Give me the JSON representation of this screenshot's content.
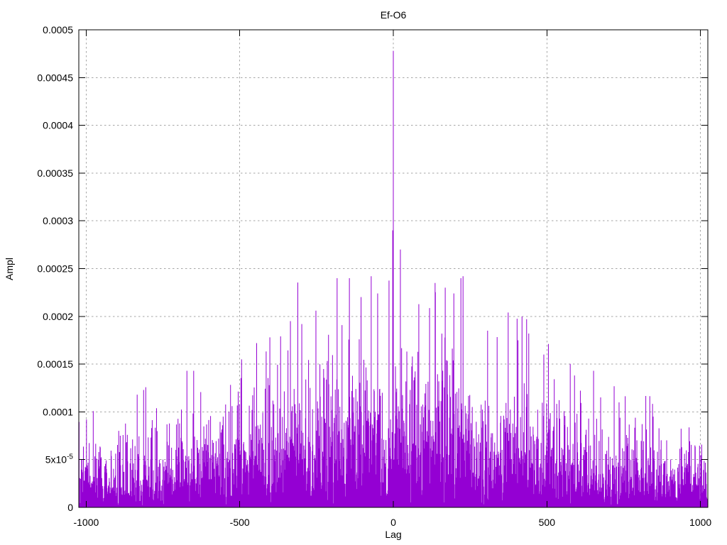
{
  "chart": {
    "background": "#ffffff",
    "frame_color": "#000000",
    "grid_color": "#a6a6a6",
    "text_color": "#000000",
    "series_color": "#9400d3"
  },
  "chart_data": {
    "type": "impulses",
    "title": "Ef-O6",
    "xlabel": "Lag",
    "ylabel": "Ampl",
    "xlim": [
      -1024,
      1024
    ],
    "ylim": [
      0,
      0.0005
    ],
    "grid": true,
    "legend": "none",
    "x_ticks": [
      -1000,
      -500,
      0,
      500,
      1000
    ],
    "x_tick_labels": [
      "-1000",
      "-500",
      "0",
      "500",
      "1000"
    ],
    "y_ticks": [
      0,
      5e-05,
      0.0001,
      0.00015,
      0.0002,
      0.00025,
      0.0003,
      0.00035,
      0.0004,
      0.00045,
      0.0005
    ],
    "y_tick_labels": [
      "0",
      "5x10^-5",
      "0.0001",
      "0.00015",
      "0.0002",
      "0.00025",
      "0.0003",
      "0.00035",
      "0.0004",
      "0.00045",
      "0.0005"
    ],
    "description": "Cross-correlation amplitude vs lag: dense noise impulses at every integer lag whose envelope decays away from zero lag, with a dominant spike at lag 0.",
    "central_peak": {
      "lag": 0,
      "ampl": 0.000478
    },
    "noise_model": {
      "seed": 7,
      "lag_min": -1023,
      "lag_max": 1023,
      "lag_step": 1,
      "sigma_center": 7.5e-05,
      "sigma_floor_fraction": 0.38,
      "gaussian_width_lags": 650,
      "random_cap": 0.000245
    },
    "explicit_points": [
      {
        "lag": 0,
        "ampl": 0.000478
      },
      {
        "lag": -2,
        "ampl": 0.00029
      },
      {
        "lag": -1,
        "ampl": 4e-05
      },
      {
        "lag": 1,
        "ampl": 3.5e-05
      },
      {
        "lag": 2,
        "ampl": 5e-05
      },
      {
        "lag": 23,
        "ampl": 0.00027
      },
      {
        "lag": -51,
        "ampl": 0.000224
      },
      {
        "lag": -72,
        "ampl": 0.000242
      },
      {
        "lag": -143,
        "ampl": 0.00024
      },
      {
        "lag": -183,
        "ampl": 0.00024
      },
      {
        "lag": -252,
        "ampl": 0.000206
      },
      {
        "lag": -298,
        "ampl": 0.000192
      },
      {
        "lag": -335,
        "ampl": 0.000195
      },
      {
        "lag": -402,
        "ampl": 0.000178
      },
      {
        "lag": -445,
        "ampl": 0.000172
      },
      {
        "lag": -494,
        "ampl": 0.000155
      },
      {
        "lag": -650,
        "ampl": 0.000143
      },
      {
        "lag": -813,
        "ampl": 0.000123
      },
      {
        "lag": -999,
        "ampl": 9.2e-05
      },
      {
        "lag": 136,
        "ampl": 0.000235
      },
      {
        "lag": 169,
        "ampl": 0.00023
      },
      {
        "lag": 197,
        "ampl": 0.000224
      },
      {
        "lag": 220,
        "ampl": 0.00024
      },
      {
        "lag": 227,
        "ampl": 0.000242
      },
      {
        "lag": 307,
        "ampl": 0.000185
      },
      {
        "lag": 374,
        "ampl": 0.000204
      },
      {
        "lag": 441,
        "ampl": 0.000182
      },
      {
        "lag": 490,
        "ampl": 0.00016
      },
      {
        "lag": 652,
        "ampl": 0.000143
      },
      {
        "lag": 735,
        "ampl": 0.00011
      },
      {
        "lag": 846,
        "ampl": 9.5e-05
      }
    ]
  }
}
